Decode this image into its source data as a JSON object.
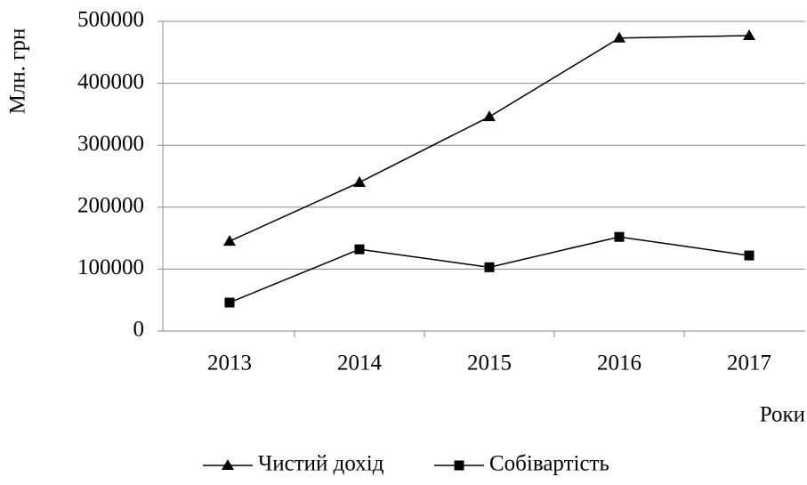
{
  "chart_data": {
    "type": "line",
    "y_label": "Млн. грн",
    "x_label": "Роки",
    "categories": [
      "2013",
      "2014",
      "2015",
      "2016",
      "2017"
    ],
    "series": [
      {
        "name": "Чистий дохід",
        "color": "#000000",
        "marker": "triangle",
        "values": [
          145000,
          240000,
          346000,
          473000,
          477000
        ]
      },
      {
        "name": "Собівартість",
        "color": "#000000",
        "marker": "square",
        "values": [
          46000,
          132000,
          103000,
          152000,
          122000
        ]
      }
    ],
    "ylim": [
      0,
      500000
    ],
    "yticks": [
      0,
      100000,
      200000,
      300000,
      400000,
      500000
    ],
    "grid": true
  }
}
